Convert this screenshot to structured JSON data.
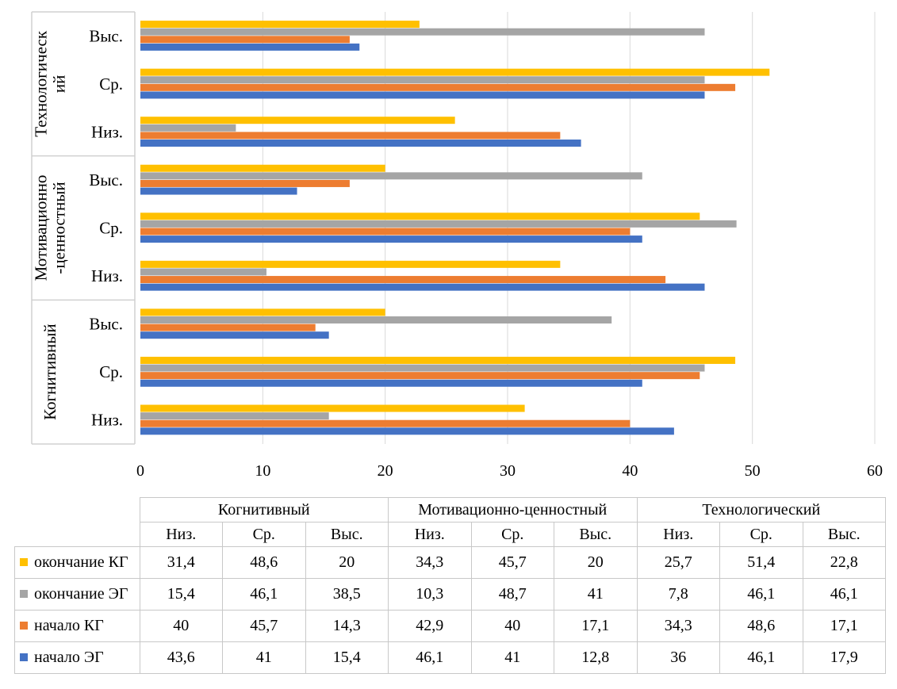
{
  "chart_data": {
    "type": "bar",
    "orientation": "horizontal",
    "xlim": [
      0,
      60
    ],
    "xticks": [
      0,
      10,
      20,
      30,
      40,
      50,
      60
    ],
    "groups": [
      {
        "label": "Технологический",
        "axis_label_lines": [
          "Технологическ",
          "ий"
        ],
        "categories": [
          "Выс.",
          "Ср.",
          "Низ."
        ]
      },
      {
        "label": "Мотивационно-ценностный",
        "axis_label_lines": [
          "Мотивационно",
          "-ценностный"
        ],
        "categories": [
          "Выс.",
          "Ср.",
          "Низ."
        ]
      },
      {
        "label": "Когнитивный",
        "axis_label_lines": [
          "Когнитивный"
        ],
        "categories": [
          "Выс.",
          "Ср.",
          "Низ."
        ]
      }
    ],
    "table_groups": [
      "Когнитивный",
      "Мотивационно-ценностный",
      "Технологический"
    ],
    "table_categories": [
      "Низ.",
      "Ср.",
      "Выс.",
      "Низ.",
      "Ср.",
      "Выс.",
      "Низ.",
      "Ср.",
      "Выс."
    ],
    "series": [
      {
        "name": "окончание КГ",
        "color": "#FFC000",
        "values": [
          31.4,
          48.6,
          20,
          34.3,
          45.7,
          20,
          25.7,
          51.4,
          22.8
        ],
        "labels": [
          "31,4",
          "48,6",
          "20",
          "34,3",
          "45,7",
          "20",
          "25,7",
          "51,4",
          "22,8"
        ]
      },
      {
        "name": "окончание ЭГ",
        "color": "#A5A5A5",
        "values": [
          15.4,
          46.1,
          38.5,
          10.3,
          48.7,
          41,
          7.8,
          46.1,
          46.1
        ],
        "labels": [
          "15,4",
          "46,1",
          "38,5",
          "10,3",
          "48,7",
          "41",
          "7,8",
          "46,1",
          "46,1"
        ]
      },
      {
        "name": "начало КГ",
        "color": "#ED7D31",
        "values": [
          40,
          45.7,
          14.3,
          42.9,
          40,
          17.1,
          34.3,
          48.6,
          17.1
        ],
        "labels": [
          "40",
          "45,7",
          "14,3",
          "42,9",
          "40",
          "17,1",
          "34,3",
          "48,6",
          "17,1"
        ]
      },
      {
        "name": "начало ЭГ",
        "color": "#4472C4",
        "values": [
          43.6,
          41,
          15.4,
          46.1,
          41,
          12.8,
          36,
          46.1,
          17.9
        ],
        "labels": [
          "43,6",
          "41",
          "15,4",
          "46,1",
          "41",
          "12,8",
          "36",
          "46,1",
          "17,9"
        ]
      }
    ]
  }
}
